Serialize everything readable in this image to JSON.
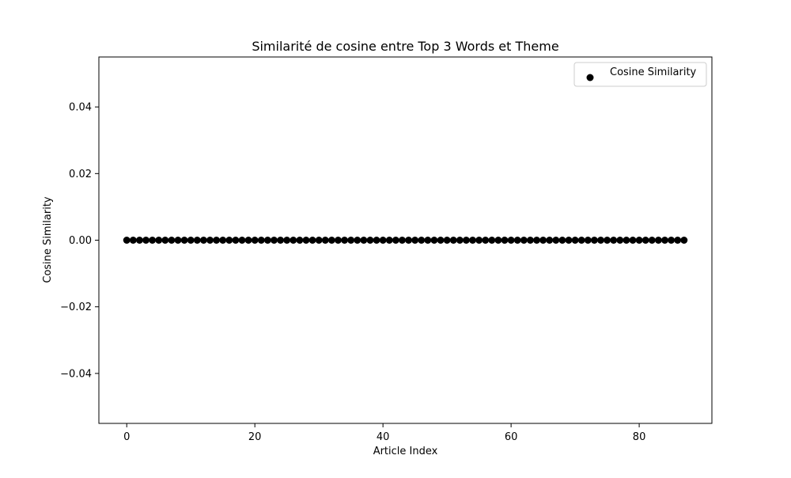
{
  "chart_data": {
    "type": "scatter",
    "title": "Similarité de cosine entre Top 3 Words et Theme",
    "xlabel": "Article Index",
    "ylabel": "Cosine Similarity",
    "xlim": [
      -4.35,
      91.35
    ],
    "ylim": [
      -0.055,
      0.055
    ],
    "xticks": [
      0,
      20,
      40,
      60,
      80
    ],
    "xtick_labels": [
      "0",
      "20",
      "40",
      "60",
      "80"
    ],
    "yticks": [
      0.04,
      0.02,
      0.0,
      -0.02,
      -0.04
    ],
    "ytick_labels": [
      "0.04",
      "0.02",
      "0.00",
      "−0.02",
      "−0.04"
    ],
    "grid": false,
    "legend": {
      "position": "upper right",
      "entries": [
        "Cosine Similarity"
      ]
    },
    "series": [
      {
        "name": "Cosine Similarity",
        "color": "#000000",
        "marker": "circle",
        "x": [
          0,
          1,
          2,
          3,
          4,
          5,
          6,
          7,
          8,
          9,
          10,
          11,
          12,
          13,
          14,
          15,
          16,
          17,
          18,
          19,
          20,
          21,
          22,
          23,
          24,
          25,
          26,
          27,
          28,
          29,
          30,
          31,
          32,
          33,
          34,
          35,
          36,
          37,
          38,
          39,
          40,
          41,
          42,
          43,
          44,
          45,
          46,
          47,
          48,
          49,
          50,
          51,
          52,
          53,
          54,
          55,
          56,
          57,
          58,
          59,
          60,
          61,
          62,
          63,
          64,
          65,
          66,
          67,
          68,
          69,
          70,
          71,
          72,
          73,
          74,
          75,
          76,
          77,
          78,
          79,
          80,
          81,
          82,
          83,
          84,
          85,
          86,
          87
        ],
        "y": [
          0,
          0,
          0,
          0,
          0,
          0,
          0,
          0,
          0,
          0,
          0,
          0,
          0,
          0,
          0,
          0,
          0,
          0,
          0,
          0,
          0,
          0,
          0,
          0,
          0,
          0,
          0,
          0,
          0,
          0,
          0,
          0,
          0,
          0,
          0,
          0,
          0,
          0,
          0,
          0,
          0,
          0,
          0,
          0,
          0,
          0,
          0,
          0,
          0,
          0,
          0,
          0,
          0,
          0,
          0,
          0,
          0,
          0,
          0,
          0,
          0,
          0,
          0,
          0,
          0,
          0,
          0,
          0,
          0,
          0,
          0,
          0,
          0,
          0,
          0,
          0,
          0,
          0,
          0,
          0,
          0,
          0,
          0,
          0,
          0,
          0,
          0,
          0
        ]
      }
    ]
  }
}
